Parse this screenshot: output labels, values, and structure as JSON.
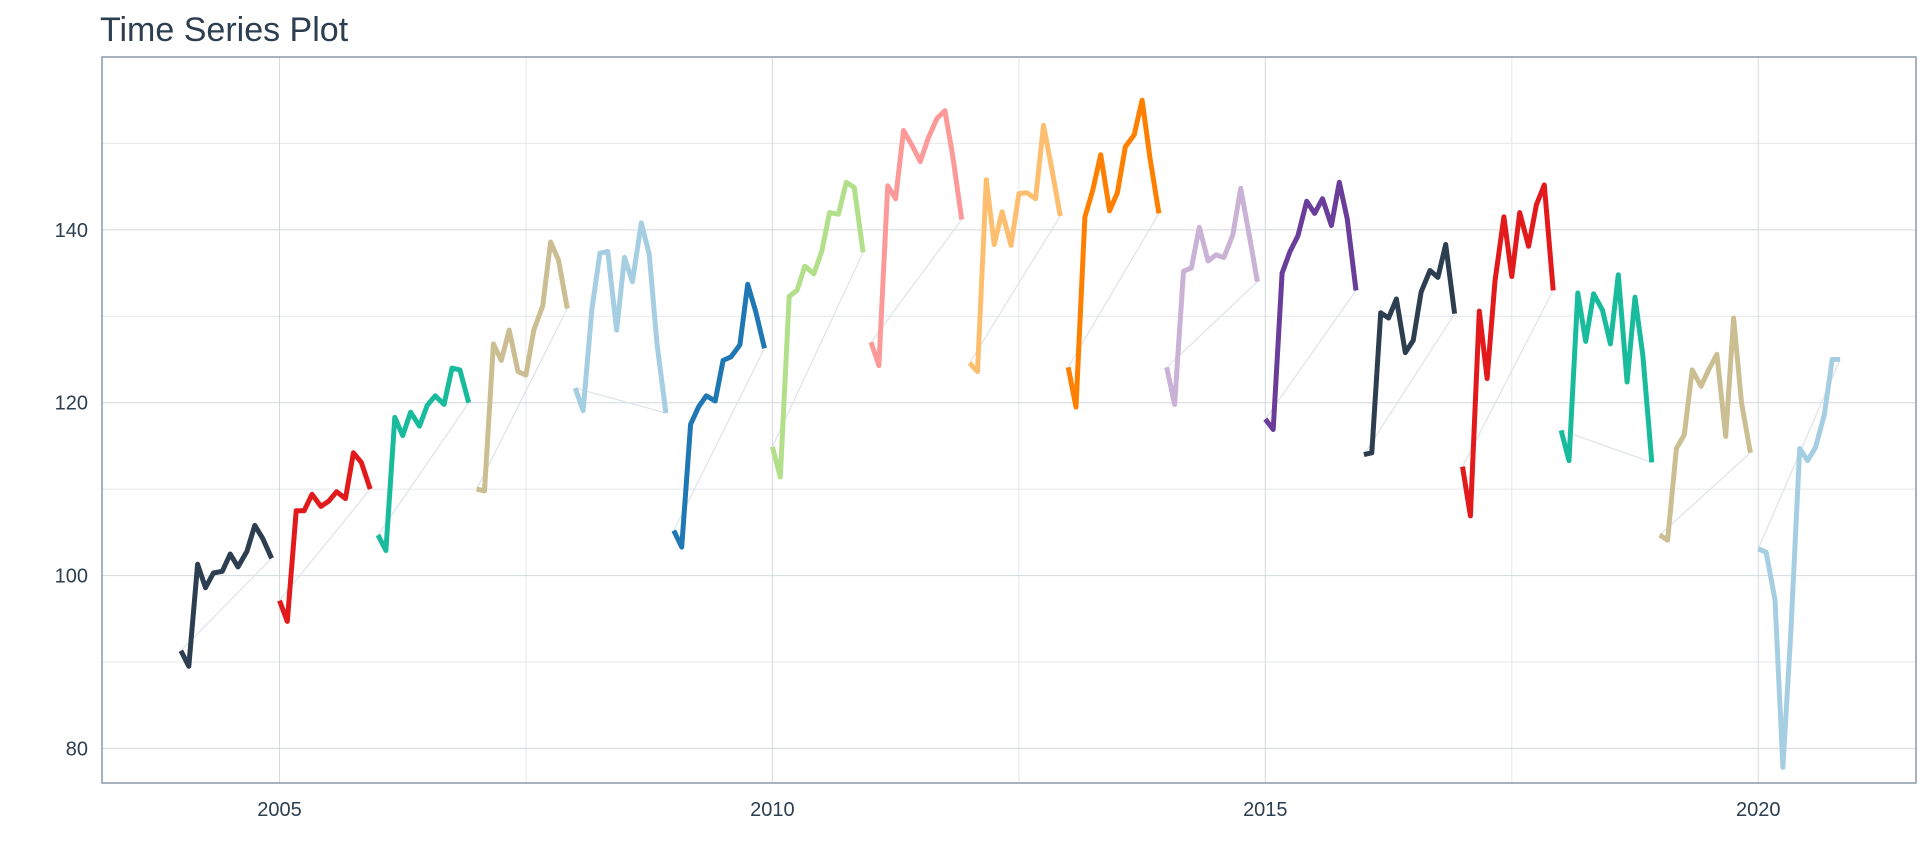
{
  "chart_data": {
    "type": "line",
    "title": "Time Series Plot",
    "xlabel": "",
    "ylabel": "",
    "xlim": [
      2003.2,
      2021.6
    ],
    "ylim": [
      76,
      160
    ],
    "x_ticks": [
      2005,
      2010,
      2015,
      2020
    ],
    "x_tick_labels": [
      "2005",
      "2010",
      "2015",
      "2020"
    ],
    "y_ticks": [
      80,
      100,
      120,
      140
    ],
    "y_tick_labels": [
      "80",
      "100",
      "120",
      "140"
    ],
    "grid": true,
    "legend": "none",
    "series": [
      {
        "color": "#2c3e50",
        "x": [
          2004.0,
          2004.08,
          2004.17,
          2004.25,
          2004.33,
          2004.42,
          2004.5,
          2004.58,
          2004.67,
          2004.75,
          2004.83,
          2004.92
        ],
        "values": [
          91.3,
          89.5,
          101.3,
          98.6,
          100.3,
          100.5,
          102.5,
          101.0,
          102.8,
          105.8,
          104.3,
          102.0
        ]
      },
      {
        "color": "#e31a1c",
        "x": [
          2005.0,
          2005.08,
          2005.17,
          2005.25,
          2005.33,
          2005.42,
          2005.5,
          2005.58,
          2005.67,
          2005.75,
          2005.83,
          2005.92
        ],
        "values": [
          97.1,
          94.7,
          107.5,
          107.5,
          109.4,
          108.0,
          108.6,
          109.7,
          108.9,
          114.2,
          113.1,
          110.0
        ]
      },
      {
        "color": "#18bc9c",
        "x": [
          2006.0,
          2006.08,
          2006.17,
          2006.25,
          2006.33,
          2006.42,
          2006.5,
          2006.58,
          2006.67,
          2006.75,
          2006.83,
          2006.92
        ],
        "values": [
          104.7,
          102.9,
          118.3,
          116.2,
          118.9,
          117.3,
          119.7,
          120.8,
          119.8,
          124.0,
          123.8,
          120.0
        ]
      },
      {
        "color": "#ccbe93",
        "x": [
          2007.0,
          2007.08,
          2007.17,
          2007.25,
          2007.33,
          2007.42,
          2007.5,
          2007.58,
          2007.67,
          2007.75,
          2007.83,
          2007.92
        ],
        "values": [
          110.0,
          109.8,
          126.8,
          124.9,
          128.4,
          123.6,
          123.2,
          128.4,
          131.2,
          138.6,
          136.5,
          130.9
        ]
      },
      {
        "color": "#a6cee3",
        "x": [
          2008.0,
          2008.08,
          2008.17,
          2008.25,
          2008.33,
          2008.42,
          2008.5,
          2008.58,
          2008.67,
          2008.75,
          2008.83,
          2008.92
        ],
        "values": [
          121.7,
          119.1,
          130.9,
          137.3,
          137.5,
          128.4,
          136.8,
          134.0,
          140.8,
          137.2,
          126.8,
          118.8
        ]
      },
      {
        "color": "#1f78b4",
        "x": [
          2009.0,
          2009.08,
          2009.17,
          2009.25,
          2009.33,
          2009.42,
          2009.5,
          2009.58,
          2009.67,
          2009.75,
          2009.83,
          2009.92
        ],
        "values": [
          105.2,
          103.3,
          117.5,
          119.5,
          120.8,
          120.2,
          124.9,
          125.3,
          126.7,
          133.7,
          130.6,
          126.3
        ]
      },
      {
        "color": "#b2df8a",
        "x": [
          2010.0,
          2010.08,
          2010.17,
          2010.25,
          2010.33,
          2010.42,
          2010.5,
          2010.58,
          2010.67,
          2010.75,
          2010.83,
          2010.92
        ],
        "values": [
          114.9,
          111.4,
          132.3,
          133.0,
          135.8,
          134.9,
          137.5,
          142.0,
          141.8,
          145.5,
          144.9,
          137.4
        ]
      },
      {
        "color": "#fb9a99",
        "x": [
          2011.0,
          2011.08,
          2011.17,
          2011.25,
          2011.33,
          2011.42,
          2011.5,
          2011.58,
          2011.67,
          2011.75,
          2011.83,
          2011.92
        ],
        "values": [
          127.0,
          124.3,
          145.1,
          143.6,
          151.5,
          149.7,
          147.9,
          150.6,
          152.9,
          153.8,
          148.5,
          141.2
        ]
      },
      {
        "color": "#fdbf6f",
        "x": [
          2012.0,
          2012.08,
          2012.17,
          2012.25,
          2012.33,
          2012.42,
          2012.5,
          2012.58,
          2012.67,
          2012.75,
          2012.83,
          2012.92
        ],
        "values": [
          124.6,
          123.6,
          145.8,
          138.3,
          142.1,
          138.2,
          144.2,
          144.3,
          143.6,
          152.1,
          147.3,
          141.6
        ]
      },
      {
        "color": "#ff7f00",
        "x": [
          2013.0,
          2013.08,
          2013.17,
          2013.25,
          2013.33,
          2013.42,
          2013.5,
          2013.58,
          2013.67,
          2013.75,
          2013.83,
          2013.92
        ],
        "values": [
          124.1,
          119.5,
          141.5,
          144.6,
          148.7,
          142.2,
          144.3,
          149.6,
          151.0,
          155.0,
          148.3,
          141.9
        ]
      },
      {
        "color": "#cab2d6",
        "x": [
          2014.0,
          2014.08,
          2014.17,
          2014.25,
          2014.33,
          2014.42,
          2014.5,
          2014.58,
          2014.67,
          2014.75,
          2014.83,
          2014.92
        ],
        "values": [
          124.1,
          119.8,
          135.2,
          135.6,
          140.3,
          136.4,
          137.1,
          136.8,
          139.4,
          144.8,
          139.8,
          134.0
        ]
      },
      {
        "color": "#6a3d9a",
        "x": [
          2015.0,
          2015.08,
          2015.17,
          2015.25,
          2015.33,
          2015.42,
          2015.5,
          2015.58,
          2015.67,
          2015.75,
          2015.83,
          2015.92
        ],
        "values": [
          118.1,
          116.9,
          135.0,
          137.5,
          139.3,
          143.3,
          141.9,
          143.6,
          140.5,
          145.5,
          141.3,
          133.0
        ]
      },
      {
        "color": "#2c3e50",
        "x": [
          2016.0,
          2016.08,
          2016.17,
          2016.25,
          2016.33,
          2016.42,
          2016.5,
          2016.58,
          2016.67,
          2016.75,
          2016.83,
          2016.92
        ],
        "values": [
          114.0,
          114.2,
          130.4,
          129.8,
          132.0,
          125.8,
          127.2,
          132.8,
          135.3,
          134.5,
          138.3,
          130.3
        ]
      },
      {
        "color": "#e31a1c",
        "x": [
          2017.0,
          2017.08,
          2017.17,
          2017.25,
          2017.33,
          2017.42,
          2017.5,
          2017.58,
          2017.67,
          2017.75,
          2017.83,
          2017.92
        ],
        "values": [
          112.6,
          106.9,
          130.6,
          122.8,
          134.1,
          141.5,
          134.6,
          142.0,
          138.1,
          142.9,
          145.2,
          133.0
        ]
      },
      {
        "color": "#18bc9c",
        "x": [
          2018.0,
          2018.08,
          2018.17,
          2018.25,
          2018.33,
          2018.42,
          2018.5,
          2018.58,
          2018.67,
          2018.75,
          2018.83,
          2018.92
        ],
        "values": [
          116.8,
          113.3,
          132.7,
          127.1,
          132.6,
          130.7,
          126.8,
          134.8,
          122.4,
          132.2,
          125.4,
          113.1
        ]
      },
      {
        "color": "#ccbe93",
        "x": [
          2019.0,
          2019.08,
          2019.17,
          2019.25,
          2019.33,
          2019.42,
          2019.5,
          2019.58,
          2019.67,
          2019.75,
          2019.83,
          2019.92
        ],
        "values": [
          104.7,
          104.1,
          114.7,
          116.3,
          123.8,
          121.9,
          123.9,
          125.6,
          116.1,
          129.8,
          120.0,
          114.2
        ]
      },
      {
        "color": "#a6cee3",
        "x": [
          2020.0,
          2020.08,
          2020.17,
          2020.25,
          2020.33,
          2020.42,
          2020.5,
          2020.58,
          2020.67,
          2020.75,
          2020.83
        ],
        "values": [
          103.1,
          102.7,
          97.2,
          77.8,
          93.4,
          114.7,
          113.3,
          114.8,
          118.6,
          125.0,
          125.0
        ]
      }
    ]
  }
}
